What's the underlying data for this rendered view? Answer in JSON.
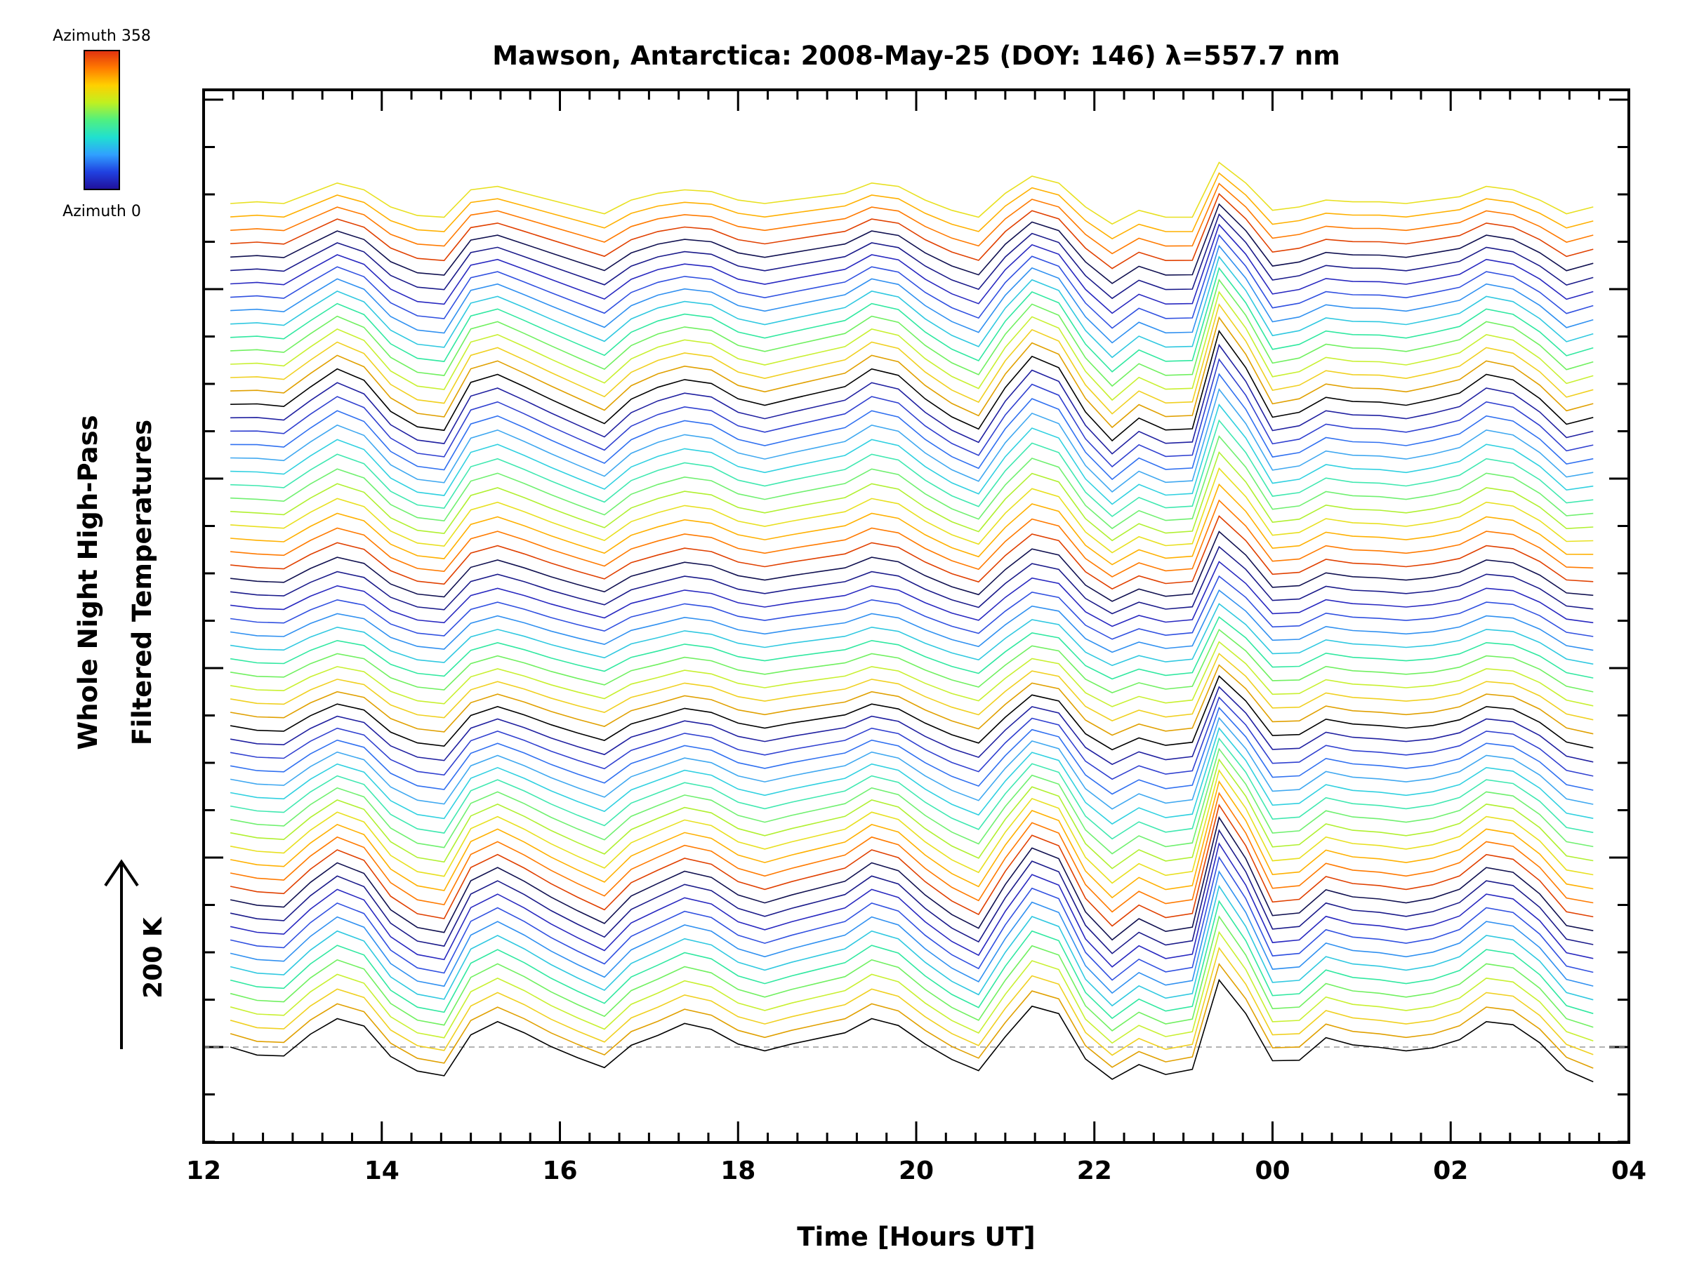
{
  "chart_data": {
    "type": "line",
    "title": "Mawson, Antarctica: 2008-May-25 (DOY: 146) λ=557.7 nm",
    "xlabel": "Time [Hours UT]",
    "ylabel_line1": "Whole Night High-Pass",
    "ylabel_line2": "Filtered Temperatures",
    "x_ticks": [
      "12",
      "14",
      "16",
      "18",
      "20",
      "22",
      "00",
      "02",
      "04"
    ],
    "xlim_hours": [
      12,
      28
    ],
    "scale_bar_label": "200 K",
    "colorbar": {
      "top_label": "Azimuth 358",
      "bottom_label": "Azimuth 0",
      "colors": [
        "#e03010",
        "#ff7a00",
        "#ffd000",
        "#c0f020",
        "#50f080",
        "#20e0d0",
        "#30a0ff",
        "#2040e0",
        "#20109a"
      ]
    },
    "grid": false,
    "baseline_dashed": true,
    "n_profiles": 64,
    "time_hours": [
      12.3,
      12.6,
      12.9,
      13.2,
      13.5,
      13.8,
      14.1,
      14.4,
      14.7,
      15.0,
      15.3,
      15.6,
      15.9,
      16.2,
      16.5,
      16.8,
      17.1,
      17.4,
      17.7,
      18.0,
      18.3,
      18.6,
      18.9,
      19.2,
      19.5,
      19.8,
      20.1,
      20.4,
      20.7,
      21.0,
      21.3,
      21.6,
      21.9,
      22.2,
      22.5,
      22.8,
      23.1,
      23.4,
      23.7,
      24.0,
      24.3,
      24.6,
      24.9,
      25.2,
      25.5,
      25.8,
      26.1,
      26.4,
      26.7,
      27.0,
      27.3,
      27.6
    ],
    "base_profile_K": [
      0,
      -40,
      -35,
      0,
      10,
      15,
      -20,
      -35,
      -45,
      -20,
      15,
      5,
      -15,
      -25,
      -30,
      -10,
      -5,
      25,
      10,
      -5,
      -15,
      -5,
      0,
      5,
      10,
      0,
      -5,
      -15,
      -25,
      -10,
      25,
      30,
      -30,
      -25,
      -35,
      -40,
      -20,
      60,
      30,
      -20,
      -35,
      20,
      0,
      -10,
      -15,
      -20,
      -5,
      15,
      20,
      0,
      -40,
      -120
    ],
    "peak_profile_K": [
      0,
      5,
      0,
      30,
      60,
      40,
      -10,
      -35,
      -40,
      40,
      50,
      30,
      10,
      -10,
      -30,
      10,
      30,
      40,
      35,
      10,
      0,
      10,
      20,
      30,
      60,
      50,
      10,
      -20,
      -40,
      30,
      80,
      60,
      -10,
      -60,
      -20,
      -40,
      -40,
      120,
      60,
      -20,
      -10,
      10,
      5,
      5,
      0,
      10,
      20,
      50,
      40,
      10,
      -30,
      -10
    ]
  }
}
